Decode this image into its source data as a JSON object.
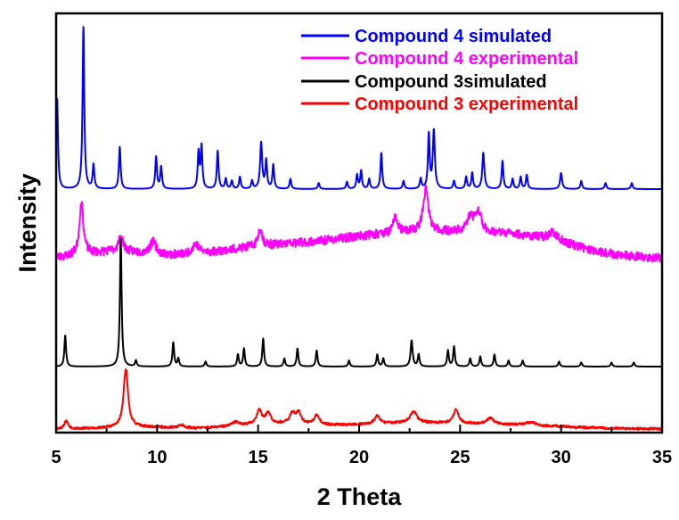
{
  "chart_data": {
    "type": "line",
    "title": "",
    "xlabel": "2 Theta",
    "ylabel": "Intensity",
    "xlim": [
      5,
      35
    ],
    "xticks": [
      "5",
      "10",
      "15",
      "20",
      "25",
      "30",
      "35"
    ],
    "y_tick_labels_shown": false,
    "grid": false,
    "legend_placement": "top-right",
    "series": [
      {
        "name": "Compound 4 simulated",
        "color": "#0000ff",
        "baseline": 0.95,
        "peaks": [
          [
            5.05,
            4.5,
            0.05
          ],
          [
            6.35,
            8.1,
            0.05
          ],
          [
            6.85,
            1.2,
            0.05
          ],
          [
            8.15,
            2.1,
            0.05
          ],
          [
            9.95,
            1.6,
            0.05
          ],
          [
            10.2,
            1.1,
            0.05
          ],
          [
            12.05,
            1.8,
            0.05
          ],
          [
            12.2,
            2.1,
            0.05
          ],
          [
            13.0,
            1.9,
            0.05
          ],
          [
            13.4,
            0.5,
            0.05
          ],
          [
            13.7,
            0.4,
            0.05
          ],
          [
            14.1,
            0.6,
            0.05
          ],
          [
            14.7,
            0.4,
            0.05
          ],
          [
            15.15,
            2.3,
            0.06
          ],
          [
            15.4,
            1.4,
            0.05
          ],
          [
            15.75,
            1.2,
            0.05
          ],
          [
            16.6,
            0.5,
            0.05
          ],
          [
            18.0,
            0.3,
            0.05
          ],
          [
            19.4,
            0.35,
            0.05
          ],
          [
            19.9,
            0.7,
            0.05
          ],
          [
            20.1,
            0.9,
            0.05
          ],
          [
            20.5,
            0.5,
            0.05
          ],
          [
            21.1,
            1.8,
            0.05
          ],
          [
            22.2,
            0.4,
            0.05
          ],
          [
            23.05,
            0.5,
            0.05
          ],
          [
            23.45,
            2.7,
            0.05
          ],
          [
            23.7,
            2.9,
            0.06
          ],
          [
            24.7,
            0.4,
            0.05
          ],
          [
            25.3,
            0.6,
            0.05
          ],
          [
            25.6,
            0.8,
            0.05
          ],
          [
            26.15,
            1.8,
            0.06
          ],
          [
            27.1,
            1.4,
            0.05
          ],
          [
            27.6,
            0.5,
            0.05
          ],
          [
            28.0,
            0.6,
            0.05
          ],
          [
            28.3,
            0.7,
            0.05
          ],
          [
            30.0,
            0.8,
            0.06
          ],
          [
            31.0,
            0.4,
            0.05
          ],
          [
            32.2,
            0.3,
            0.05
          ],
          [
            33.5,
            0.3,
            0.05
          ]
        ],
        "humps": [],
        "noise": 0.0,
        "seed": 11
      },
      {
        "name": "Compound 4 experimental",
        "color": "#ff00ff",
        "baseline": 1.0,
        "peaks": [
          [
            6.25,
            2.6,
            0.12
          ],
          [
            8.2,
            0.7,
            0.15
          ],
          [
            9.8,
            0.6,
            0.18
          ],
          [
            11.9,
            0.5,
            0.2
          ],
          [
            15.1,
            0.9,
            0.12
          ],
          [
            21.8,
            0.8,
            0.12
          ],
          [
            23.3,
            2.1,
            0.15
          ],
          [
            25.5,
            0.7,
            0.2
          ],
          [
            25.9,
            1.0,
            0.18
          ],
          [
            29.6,
            0.4,
            0.3
          ]
        ],
        "humps": [
          [
            8.0,
            0.35,
            1.6
          ],
          [
            15.0,
            0.4,
            2.5
          ],
          [
            22.5,
            1.3,
            4.0
          ],
          [
            28.5,
            0.7,
            2.5
          ]
        ],
        "noise": 0.22,
        "seed": 23
      },
      {
        "name": "Compound 3 simulated",
        "color": "#000000",
        "baseline": 0.95,
        "peaks": [
          [
            5.45,
            1.55,
            0.05
          ],
          [
            8.2,
            6.4,
            0.05
          ],
          [
            8.95,
            0.3,
            0.05
          ],
          [
            10.8,
            1.2,
            0.05
          ],
          [
            11.05,
            0.4,
            0.05
          ],
          [
            12.4,
            0.25,
            0.05
          ],
          [
            14.0,
            0.6,
            0.05
          ],
          [
            14.3,
            0.9,
            0.05
          ],
          [
            15.25,
            1.4,
            0.05
          ],
          [
            16.3,
            0.4,
            0.05
          ],
          [
            16.95,
            0.9,
            0.05
          ],
          [
            17.9,
            0.8,
            0.05
          ],
          [
            19.5,
            0.3,
            0.05
          ],
          [
            20.9,
            0.6,
            0.05
          ],
          [
            21.2,
            0.4,
            0.05
          ],
          [
            22.6,
            1.3,
            0.06
          ],
          [
            22.95,
            0.6,
            0.05
          ],
          [
            24.4,
            0.8,
            0.05
          ],
          [
            24.7,
            1.0,
            0.05
          ],
          [
            25.5,
            0.4,
            0.05
          ],
          [
            26.0,
            0.5,
            0.05
          ],
          [
            26.7,
            0.6,
            0.05
          ],
          [
            27.4,
            0.3,
            0.05
          ],
          [
            28.1,
            0.3,
            0.05
          ],
          [
            29.9,
            0.25,
            0.05
          ],
          [
            31.0,
            0.2,
            0.05
          ],
          [
            32.5,
            0.2,
            0.05
          ],
          [
            33.6,
            0.2,
            0.05
          ]
        ],
        "humps": [],
        "noise": 0.0,
        "seed": 37
      },
      {
        "name": "Compound 3 experimental",
        "color": "#ff0000",
        "baseline": 0.0,
        "peaks": [
          [
            5.5,
            0.4,
            0.12
          ],
          [
            8.45,
            2.95,
            0.13
          ],
          [
            11.2,
            0.15,
            0.2
          ],
          [
            13.9,
            0.2,
            0.25
          ],
          [
            15.05,
            0.7,
            0.15
          ],
          [
            15.5,
            0.55,
            0.15
          ],
          [
            16.7,
            0.5,
            0.15
          ],
          [
            17.0,
            0.55,
            0.15
          ],
          [
            17.9,
            0.45,
            0.15
          ],
          [
            20.9,
            0.4,
            0.15
          ],
          [
            22.7,
            0.55,
            0.2
          ],
          [
            24.8,
            0.7,
            0.15
          ],
          [
            26.5,
            0.3,
            0.2
          ],
          [
            28.5,
            0.15,
            0.3
          ]
        ],
        "humps": [
          [
            9.0,
            0.1,
            1.5
          ],
          [
            16.0,
            0.25,
            2.0
          ],
          [
            22.0,
            0.25,
            2.5
          ],
          [
            27.0,
            0.2,
            3.0
          ]
        ],
        "noise": 0.06,
        "seed": 53
      }
    ],
    "legend_entries": [
      {
        "label": "Compound 4 simulated",
        "color": "#0000ff"
      },
      {
        "label": "Compound 4 experimental",
        "color": "#ff00ff"
      },
      {
        "label": "Compound 3simulated",
        "color": "#000000"
      },
      {
        "label": "Compound 3 experimental",
        "color": "#ff0000"
      }
    ]
  }
}
